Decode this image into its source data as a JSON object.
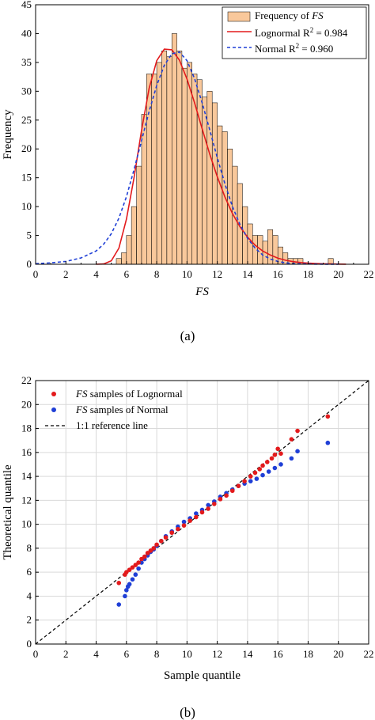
{
  "chart_data": [
    {
      "type": "bar",
      "panel_label": "(a)",
      "xlabel": "FS",
      "ylabel": "Frequency",
      "xlim": [
        0,
        22
      ],
      "ylim": [
        0,
        45
      ],
      "xticks": [
        "0",
        "2",
        "4",
        "6",
        "8",
        "10",
        "12",
        "14",
        "16",
        "18",
        "20",
        "22"
      ],
      "yticks": [
        "0",
        "5",
        "10",
        "15",
        "20",
        "25",
        "30",
        "35",
        "40",
        "45"
      ],
      "grid": false,
      "legend_position": "top-right",
      "legend": [
        {
          "prefix": "Frequency of ",
          "italic": "FS",
          "suffix": ""
        },
        {
          "prefix": "Lognormal R",
          "sup": "2",
          "suffix": " = 0.984"
        },
        {
          "prefix": "Normal R",
          "sup": "2",
          "suffix": " = 0.960"
        }
      ],
      "bar_width": 0.333,
      "bar_color": "#f9c89b",
      "histogram": {
        "bin_left": [
          5.33,
          5.67,
          6.0,
          6.33,
          6.67,
          7.0,
          7.33,
          7.67,
          8.0,
          8.33,
          8.67,
          9.0,
          9.33,
          9.67,
          10.0,
          10.33,
          10.67,
          11.0,
          11.33,
          11.67,
          12.0,
          12.33,
          12.67,
          13.0,
          13.33,
          13.67,
          14.0,
          14.33,
          14.67,
          15.0,
          15.33,
          15.67,
          16.0,
          16.33,
          16.67,
          17.0,
          17.33,
          17.67,
          18.0,
          18.33,
          18.67,
          19.0,
          19.33
        ],
        "counts": [
          1,
          2,
          5,
          10,
          17,
          26,
          33,
          33,
          35,
          37,
          36,
          40,
          37,
          34,
          35,
          33,
          32,
          29,
          30,
          28,
          24,
          23,
          20,
          17,
          14,
          10,
          7,
          5,
          5,
          4,
          6,
          5,
          3,
          2,
          1,
          1,
          1,
          0,
          0,
          0,
          0,
          0,
          1
        ]
      },
      "series": [
        {
          "name": "Lognormal",
          "color": "#e31a1c",
          "dash": "solid",
          "r2": 0.984,
          "x": [
            4.0,
            4.5,
            5.0,
            5.5,
            6.0,
            6.5,
            7.0,
            7.5,
            8.0,
            8.5,
            9.0,
            9.5,
            10.0,
            10.5,
            11.0,
            11.5,
            12.0,
            12.5,
            13.0,
            13.5,
            14.0,
            14.5,
            15.0,
            15.5,
            16.0,
            16.5,
            17.0,
            17.5,
            18.0,
            18.5,
            19.0,
            19.5,
            20.0,
            20.5
          ],
          "y": [
            0.0,
            0.05,
            0.6,
            2.8,
            7.8,
            15.0,
            23.3,
            30.5,
            35.3,
            37.3,
            37.2,
            35.4,
            32.1,
            28.0,
            23.5,
            19.1,
            15.2,
            11.7,
            8.8,
            6.5,
            4.7,
            3.3,
            2.3,
            1.6,
            1.05,
            0.7,
            0.45,
            0.3,
            0.19,
            0.12,
            0.08,
            0.05,
            0.03,
            0.02
          ]
        },
        {
          "name": "Normal",
          "color": "#1f3fd6",
          "dash": "dashed",
          "r2": 0.96,
          "x": [
            0.0,
            1.0,
            2.0,
            3.0,
            4.0,
            4.5,
            5.0,
            5.5,
            6.0,
            6.5,
            7.0,
            7.5,
            8.0,
            8.5,
            9.0,
            9.5,
            10.0,
            10.5,
            11.0,
            11.5,
            12.0,
            12.5,
            13.0,
            13.5,
            14.0,
            14.5,
            15.0,
            15.5,
            16.0,
            16.5,
            17.0,
            18.0,
            19.0,
            20.0
          ],
          "y": [
            0.1,
            0.25,
            0.5,
            1.1,
            2.3,
            3.5,
            5.3,
            8.0,
            11.7,
            16.4,
            21.5,
            26.5,
            31.0,
            34.5,
            36.5,
            36.8,
            35.3,
            32.2,
            28.0,
            23.3,
            18.5,
            14.0,
            10.0,
            6.9,
            4.5,
            2.8,
            1.6,
            0.9,
            0.5,
            0.25,
            0.12,
            0.04,
            0.01,
            0.0
          ]
        }
      ]
    },
    {
      "type": "scatter",
      "panel_label": "(b)",
      "xlabel": "Sample quantile",
      "ylabel": "Theoretical quantile",
      "xlim": [
        0,
        22
      ],
      "ylim": [
        0,
        22
      ],
      "xticks": [
        "0",
        "2",
        "4",
        "6",
        "8",
        "10",
        "12",
        "14",
        "16",
        "18",
        "20",
        "22"
      ],
      "yticks": [
        "0",
        "2",
        "4",
        "6",
        "8",
        "10",
        "12",
        "14",
        "16",
        "18",
        "20",
        "22"
      ],
      "grid": true,
      "legend_position": "top-left",
      "legend": [
        {
          "italic": "FS",
          "suffix": " samples of Lognormal"
        },
        {
          "italic": "FS",
          "suffix": " samples of Normal"
        },
        {
          "prefix": "1:1 reference line"
        }
      ],
      "series": [
        {
          "name": "FS samples of Lognormal",
          "color": "#e31a1c",
          "marker": "circle",
          "x": [
            5.5,
            5.9,
            6.0,
            6.2,
            6.4,
            6.6,
            6.8,
            7.0,
            7.2,
            7.4,
            7.6,
            7.8,
            8.0,
            8.3,
            8.6,
            9.0,
            9.4,
            9.8,
            10.2,
            10.6,
            11.0,
            11.4,
            11.8,
            12.2,
            12.6,
            13.0,
            13.4,
            13.8,
            14.2,
            14.5,
            14.8,
            15.0,
            15.3,
            15.6,
            15.8,
            16.0,
            16.2,
            16.9,
            17.3,
            19.3
          ],
          "y": [
            5.1,
            5.8,
            6.0,
            6.2,
            6.4,
            6.6,
            6.8,
            7.1,
            7.3,
            7.6,
            7.8,
            8.0,
            8.3,
            8.6,
            8.9,
            9.3,
            9.6,
            9.9,
            10.3,
            10.6,
            11.0,
            11.3,
            11.7,
            12.1,
            12.4,
            12.8,
            13.2,
            13.6,
            14.0,
            14.3,
            14.6,
            14.9,
            15.2,
            15.5,
            15.8,
            16.3,
            15.9,
            17.1,
            17.8,
            19.0
          ]
        },
        {
          "name": "FS samples of Normal",
          "color": "#1f3fd6",
          "marker": "circle",
          "x": [
            5.5,
            5.9,
            6.0,
            6.1,
            6.2,
            6.4,
            6.6,
            6.8,
            7.0,
            7.2,
            7.4,
            7.6,
            7.8,
            8.0,
            8.3,
            8.6,
            9.0,
            9.4,
            9.8,
            10.2,
            10.6,
            11.0,
            11.4,
            11.8,
            12.2,
            12.6,
            13.0,
            13.4,
            13.8,
            14.2,
            14.6,
            15.0,
            15.4,
            15.8,
            16.2,
            16.9,
            17.3,
            19.3
          ],
          "y": [
            3.3,
            4.0,
            4.5,
            4.8,
            5.0,
            5.4,
            5.8,
            6.3,
            6.8,
            7.1,
            7.4,
            7.7,
            7.9,
            8.2,
            8.6,
            9.0,
            9.4,
            9.8,
            10.2,
            10.5,
            10.9,
            11.2,
            11.6,
            11.9,
            12.3,
            12.6,
            12.9,
            13.2,
            13.4,
            13.6,
            13.8,
            14.1,
            14.4,
            14.7,
            15.0,
            15.5,
            16.1,
            16.8
          ]
        }
      ],
      "reference_line": {
        "name": "1:1 reference line",
        "x": [
          0,
          22
        ],
        "y": [
          0,
          22
        ],
        "color": "#000000",
        "dash": "dashed"
      }
    }
  ]
}
